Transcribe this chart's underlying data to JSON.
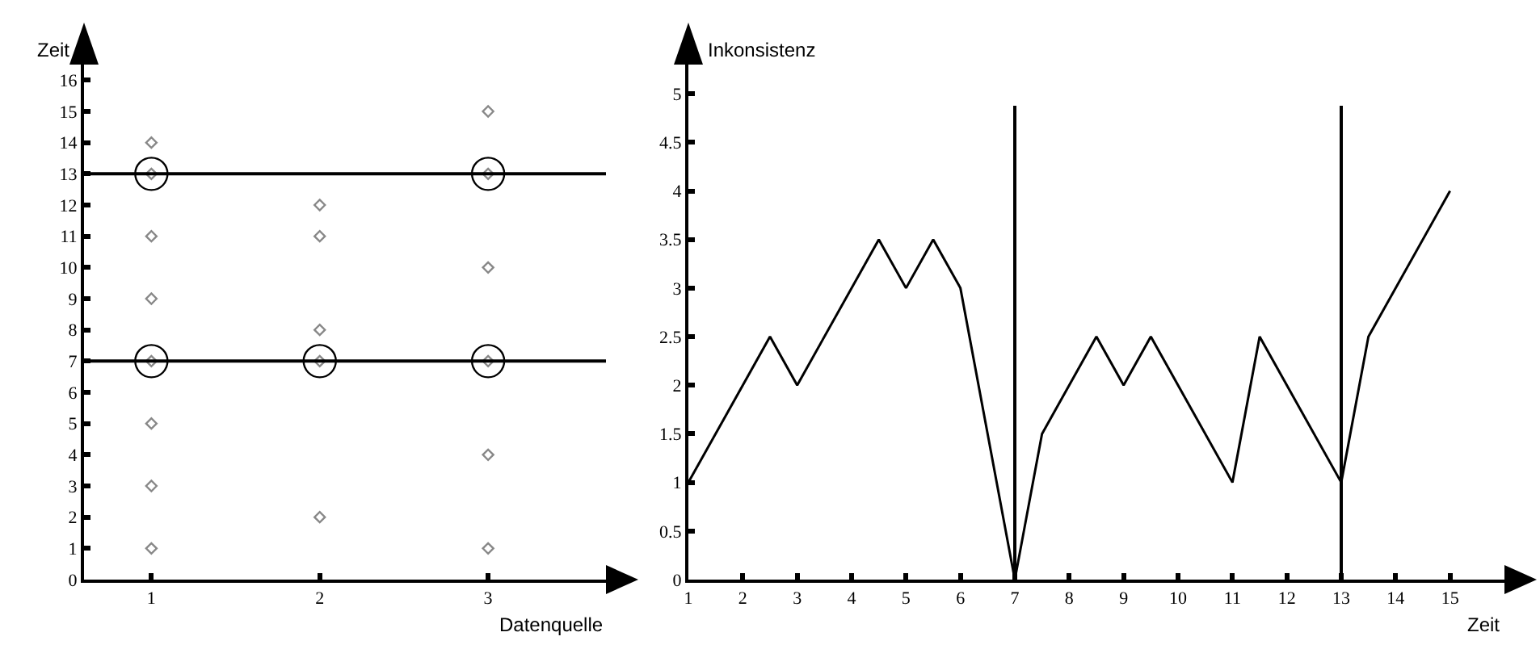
{
  "chart_data": [
    {
      "type": "scatter",
      "xlabel": "Datenquelle",
      "ylabel": "Zeit",
      "xlim": [
        0.6,
        3.7
      ],
      "ylim": [
        0,
        16.5
      ],
      "xticks": [
        1,
        2,
        3
      ],
      "yticks": [
        0,
        1,
        2,
        3,
        4,
        5,
        6,
        7,
        8,
        9,
        10,
        11,
        12,
        13,
        14,
        15,
        16
      ],
      "grid": false,
      "series": [
        {
          "color": "#888888",
          "marker": "diamond",
          "x": [
            1,
            1,
            1,
            1,
            1,
            1,
            1,
            1,
            2,
            2,
            2,
            2,
            2,
            3,
            3,
            3,
            3,
            3,
            3
          ],
          "values": [
            1,
            3,
            5,
            7,
            9,
            11,
            13,
            14,
            2,
            7,
            8,
            11,
            12,
            1,
            4,
            7,
            10,
            13,
            15
          ]
        },
        {
          "color": "#000000",
          "marker": "circle",
          "x": [
            1,
            1,
            2,
            3,
            3
          ],
          "values": [
            7,
            13,
            7,
            7,
            13
          ]
        }
      ],
      "ref_lines": [
        {
          "axis": "y",
          "value": 7,
          "color": "#000000",
          "line_style": "solid"
        },
        {
          "axis": "y",
          "value": 13,
          "color": "#000000",
          "line_style": "solid"
        }
      ]
    },
    {
      "type": "line",
      "xlabel": "Zeit",
      "ylabel": "Inkonsistenz",
      "xlim": [
        1,
        16
      ],
      "ylim": [
        0,
        5.3
      ],
      "xticks": [
        1,
        2,
        3,
        4,
        5,
        6,
        7,
        8,
        9,
        10,
        11,
        12,
        13,
        14,
        15
      ],
      "yticks": [
        0,
        0.5,
        1,
        1.5,
        2,
        2.5,
        3,
        3.5,
        4,
        4.5,
        5
      ],
      "grid": false,
      "marker": "none",
      "line_style": "solid",
      "series": [
        {
          "color": "#000000",
          "x": [
            1,
            2.5,
            3,
            4.5,
            5,
            5.5,
            6,
            7,
            7.5,
            8.5,
            9,
            9.5,
            11,
            11.5,
            13,
            13.5,
            15
          ],
          "values": [
            1,
            2.5,
            2,
            3.5,
            3,
            3.5,
            3,
            0,
            1.5,
            2.5,
            2,
            2.5,
            1,
            2.5,
            1,
            2.5,
            4
          ]
        }
      ],
      "ref_lines": [
        {
          "axis": "x",
          "value": 7,
          "color": "#000000",
          "line_style": "solid"
        },
        {
          "axis": "x",
          "value": 13,
          "color": "#000000",
          "line_style": "solid"
        }
      ]
    }
  ]
}
